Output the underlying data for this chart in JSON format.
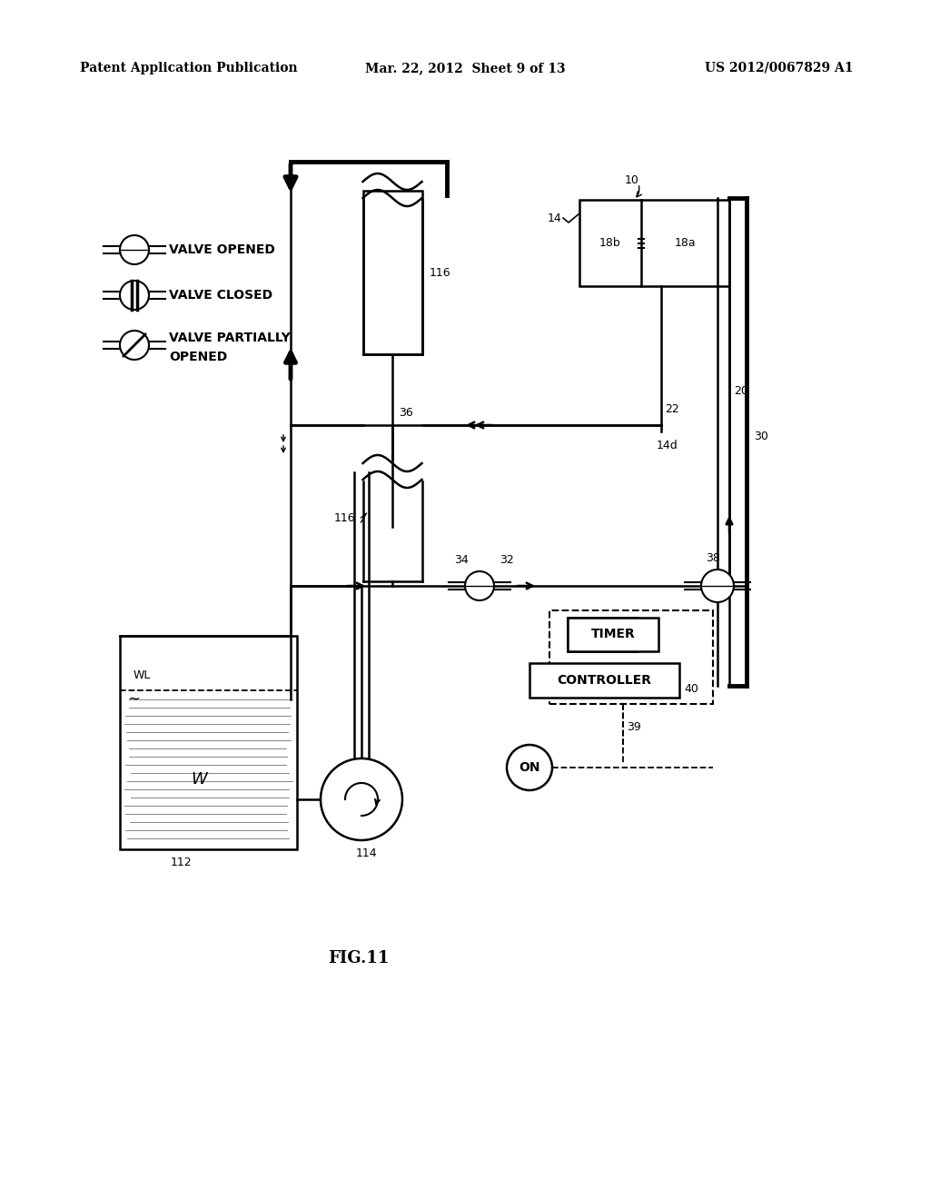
{
  "bg_color": "#ffffff",
  "header_left": "Patent Application Publication",
  "header_mid": "Mar. 22, 2012  Sheet 9 of 13",
  "header_right": "US 2012/0067829 A1",
  "figure_label": "FIG.11",
  "black": "#000000",
  "lw": 1.8,
  "lw_thick": 3.5,
  "fs_small": 9,
  "fs_med": 10,
  "fs_label": 13
}
